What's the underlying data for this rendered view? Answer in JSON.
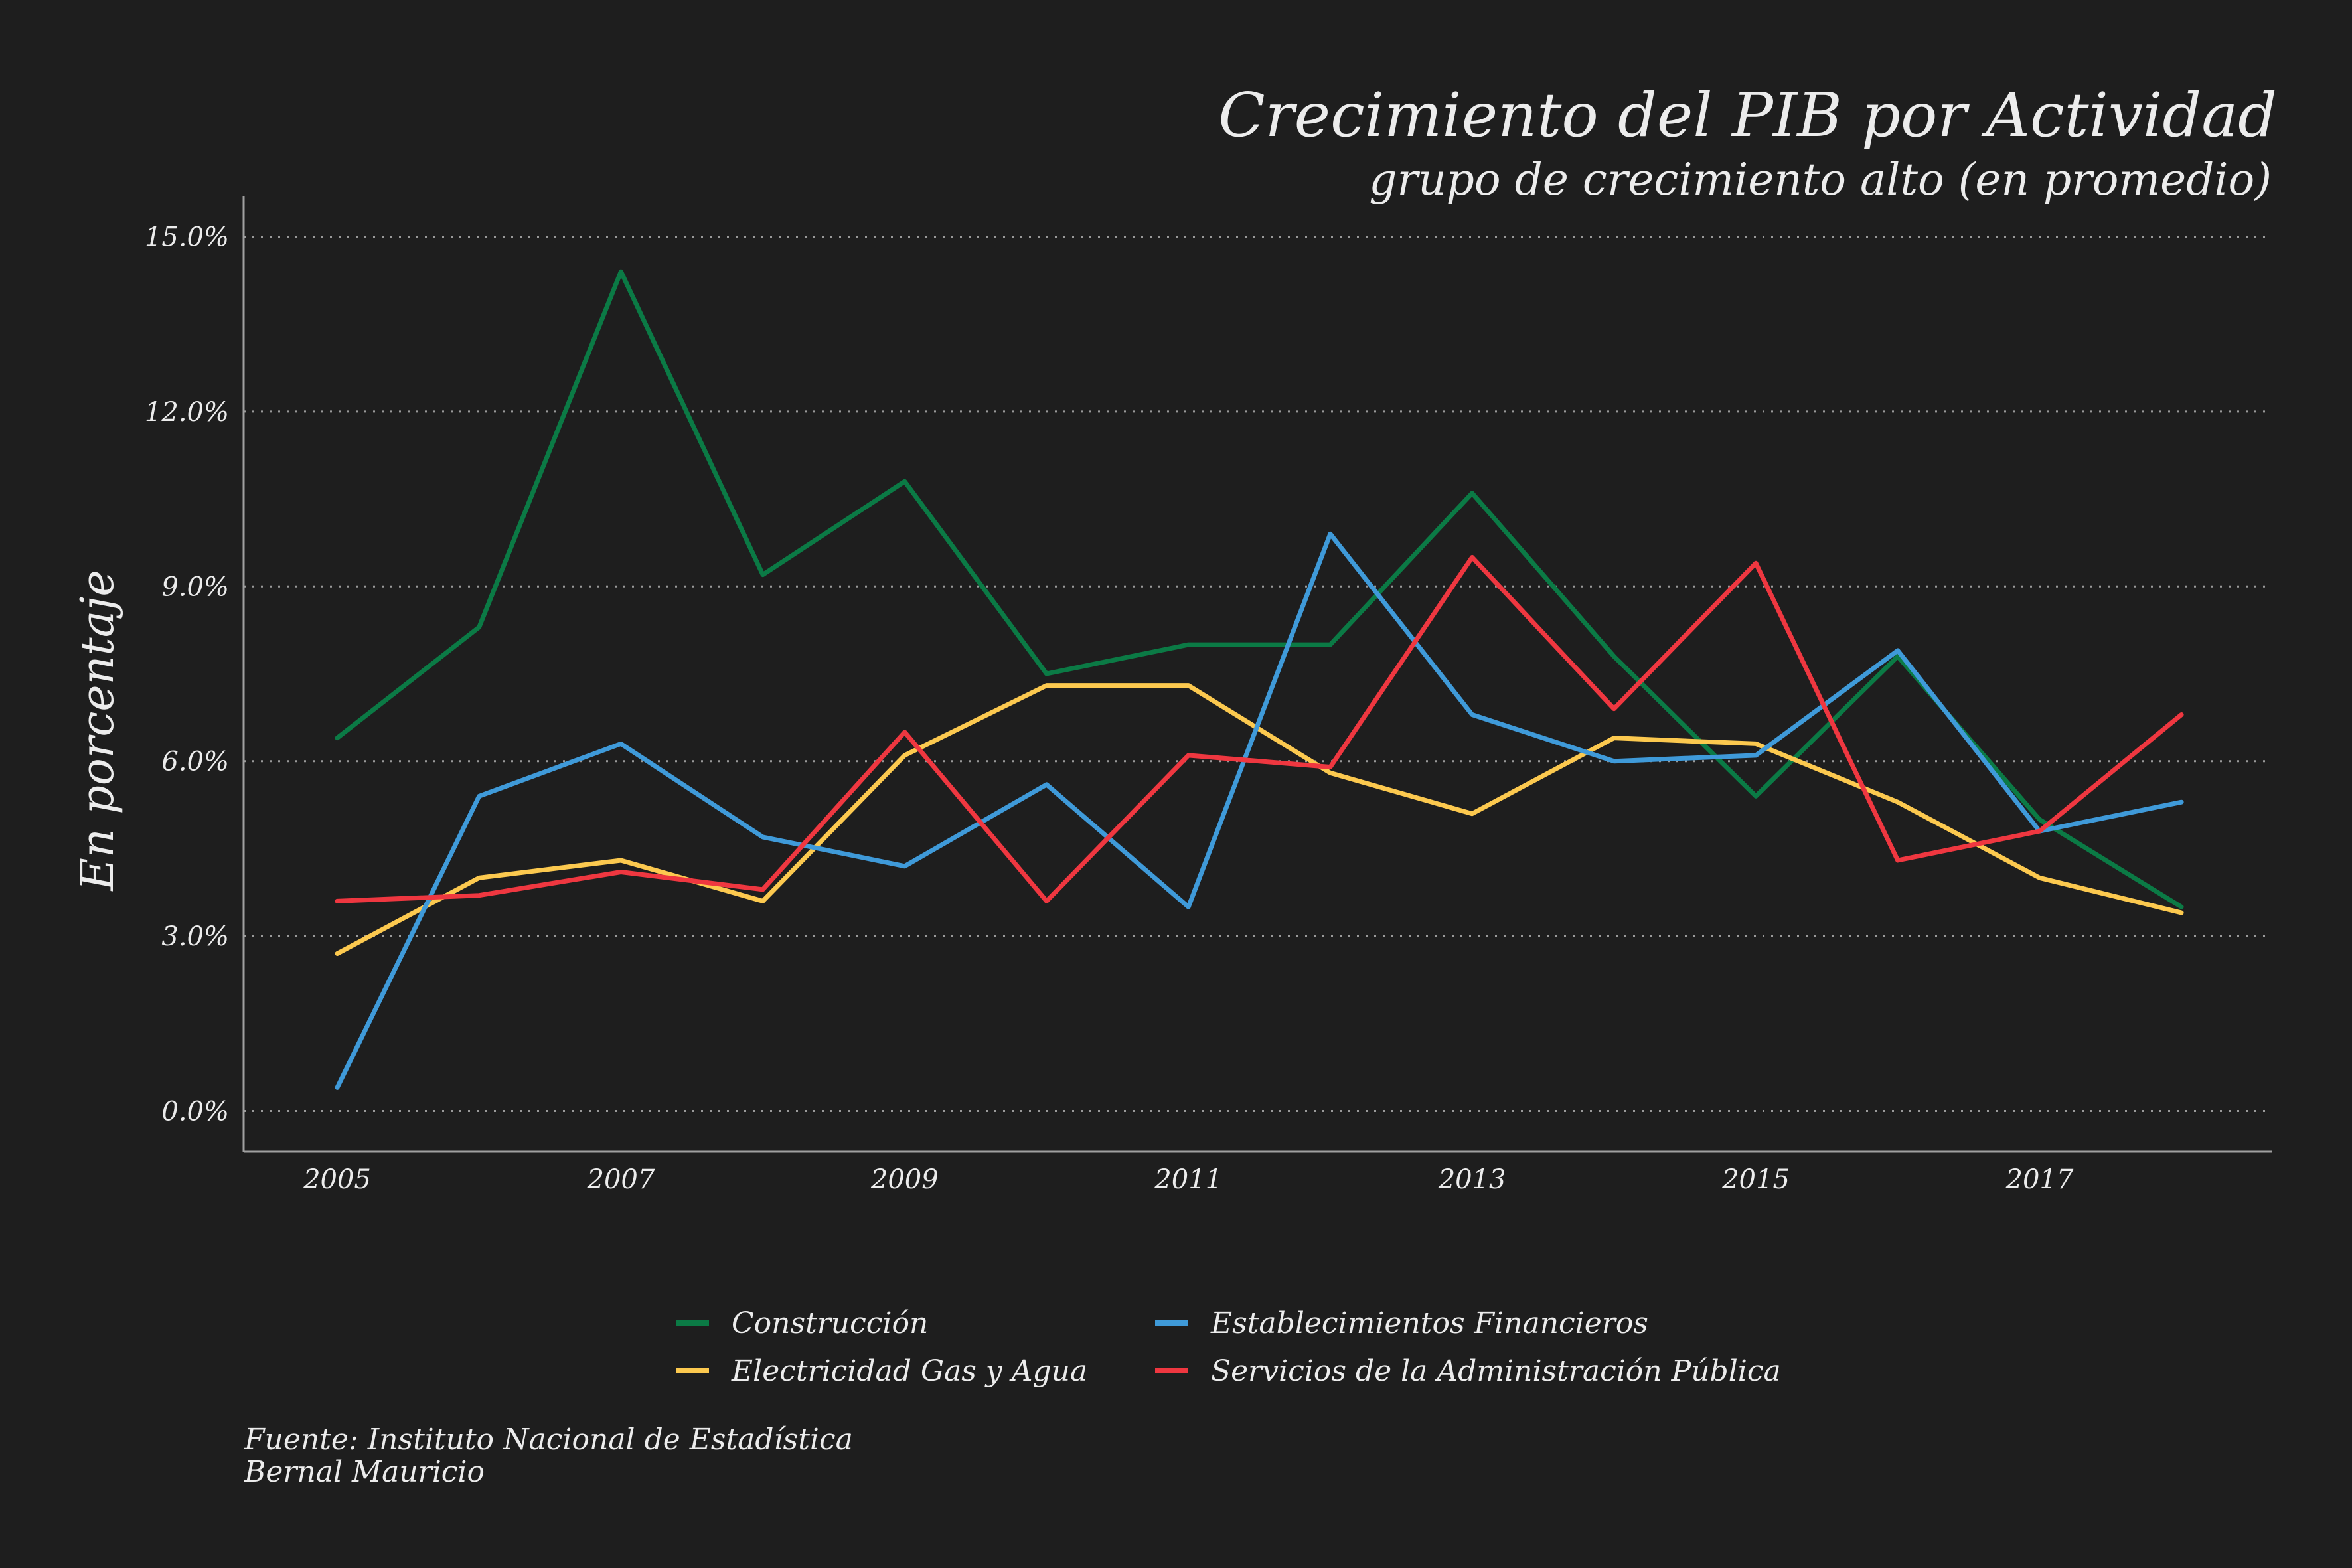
{
  "chart_data": {
    "type": "line",
    "title": "Crecimiento del PIB por Actividad",
    "subtitle": "grupo de crecimiento alto (en promedio)",
    "xlabel": "",
    "ylabel": "En porcentaje",
    "x": [
      2005,
      2006,
      2007,
      2008,
      2009,
      2010,
      2011,
      2012,
      2013,
      2014,
      2015,
      2016,
      2017,
      2018
    ],
    "x_ticks": [
      "2005",
      "2007",
      "2009",
      "2011",
      "2013",
      "2015",
      "2017"
    ],
    "y_ticks": [
      "0.0%",
      "3.0%",
      "6.0%",
      "9.0%",
      "12.0%",
      "15.0%"
    ],
    "ylim": [
      -0.7,
      15.7
    ],
    "grid": "horizontal dotted",
    "legend_position": "bottom",
    "series": [
      {
        "name": "Construcción",
        "color": "#0b7a45",
        "values": [
          6.4,
          8.3,
          14.4,
          9.2,
          10.8,
          7.5,
          8.0,
          8.0,
          10.6,
          7.8,
          5.4,
          7.8,
          5.0,
          3.5
        ]
      },
      {
        "name": "Electricidad Gas y Agua",
        "color": "#fcc94f",
        "values": [
          2.7,
          4.0,
          4.3,
          3.6,
          6.1,
          7.3,
          7.3,
          5.8,
          5.1,
          6.4,
          6.3,
          5.3,
          4.0,
          3.4
        ]
      },
      {
        "name": "Establecimientos Financieros",
        "color": "#3f9ad9",
        "values": [
          0.4,
          5.4,
          6.3,
          4.7,
          4.2,
          5.6,
          3.5,
          9.9,
          6.8,
          6.0,
          6.1,
          7.9,
          4.8,
          5.3
        ]
      },
      {
        "name": "Servicios de la Administración Pública",
        "color": "#ef3740",
        "values": [
          3.6,
          3.7,
          4.1,
          3.8,
          6.5,
          3.6,
          6.1,
          5.9,
          9.5,
          6.9,
          9.4,
          4.3,
          4.8,
          6.8
        ]
      }
    ]
  },
  "caption": {
    "source": "Fuente: Instituto Nacional de Estadística",
    "author": "Bernal Mauricio"
  }
}
